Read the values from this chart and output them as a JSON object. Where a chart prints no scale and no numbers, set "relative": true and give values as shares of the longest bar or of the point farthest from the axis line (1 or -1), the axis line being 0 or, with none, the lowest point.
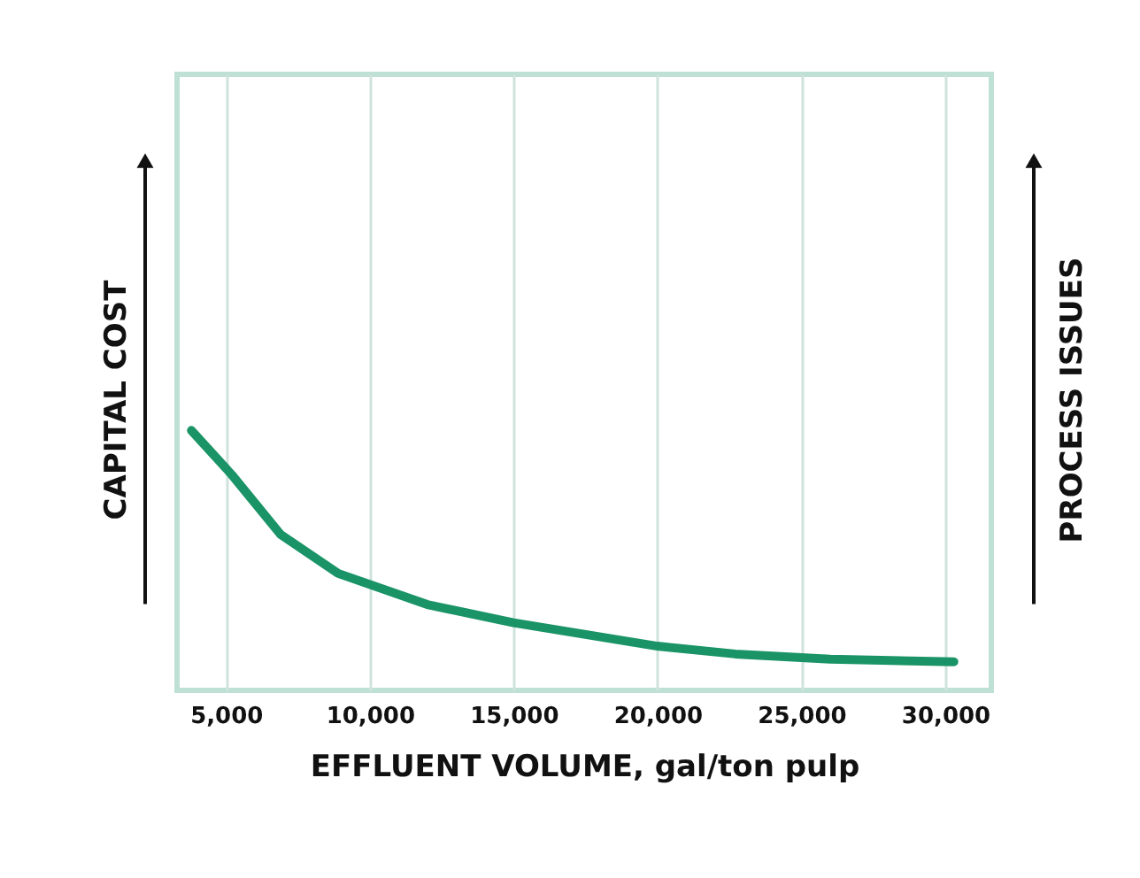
{
  "chart_data": {
    "type": "line",
    "xlabel": "EFFLUENT VOLUME, gal/ton pulp",
    "ylabel": "CAPITAL COST",
    "y2label": "PROCESS ISSUES",
    "x": [
      3800,
      5200,
      6900,
      8900,
      12000,
      15000,
      20000,
      22700,
      26000,
      30300
    ],
    "series": [
      {
        "color": "#1a9466",
        "values": [
          1,
          0.83,
          0.6,
          0.45,
          0.33,
          0.26,
          0.17,
          0.14,
          0.12,
          0.11
        ]
      }
    ],
    "relative": true,
    "xlim": [
      3300,
      31600
    ],
    "xticks": [
      {
        "value": 5000,
        "label": "5,000"
      },
      {
        "value": 10000,
        "label": "10,000"
      },
      {
        "value": 15000,
        "label": "15,000"
      },
      {
        "value": 20000,
        "label": "20,000"
      },
      {
        "value": 25000,
        "label": "25,000"
      },
      {
        "value": 30000,
        "label": "30,000"
      }
    ],
    "grid": "x"
  }
}
